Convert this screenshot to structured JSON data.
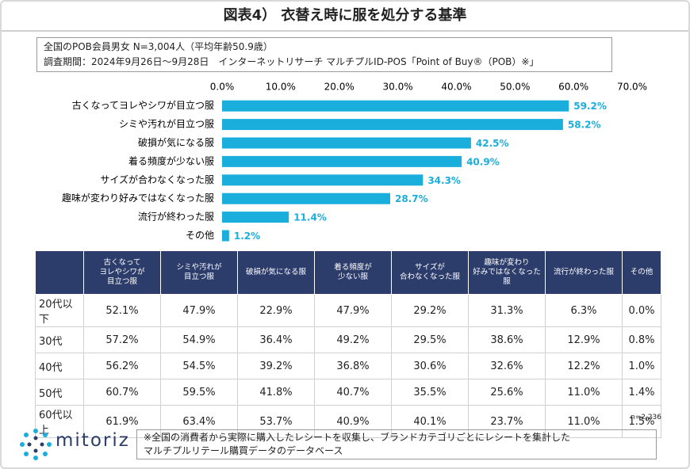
{
  "title": "図表4） 衣替え時に服を処分する基準",
  "notes": [
    "全国のPOB会員男女 N=3,004人（平均年齢50.9歳）",
    "調査期間：2024年9月26日～9月28日　インターネットリサーチ マルチプルID-POS「Point of Buy®（POB）※」"
  ],
  "chart_data": {
    "type": "bar",
    "orientation": "horizontal",
    "categories": [
      "古くなってヨレやシワが目立つ服",
      "シミや汚れが目立つ服",
      "破損が気になる服",
      "着る頻度が少ない服",
      "サイズが合わなくなった服",
      "趣味が変わり好みではなくなった服",
      "流行が終わった服",
      "その他"
    ],
    "values": [
      59.2,
      58.2,
      42.5,
      40.9,
      34.3,
      28.7,
      11.4,
      1.2
    ],
    "value_labels": [
      "59.2%",
      "58.2%",
      "42.5%",
      "40.9%",
      "34.3%",
      "28.7%",
      "11.4%",
      "1.2%"
    ],
    "color": "#1aaedc",
    "xlim": [
      0,
      70
    ],
    "xticks": [
      {
        "value": 0,
        "label": "0.0%"
      },
      {
        "value": 10,
        "label": "10.0%"
      },
      {
        "value": 20,
        "label": "20.0%"
      },
      {
        "value": 30,
        "label": "30.0%"
      },
      {
        "value": 40,
        "label": "40.0%"
      },
      {
        "value": 50,
        "label": "50.0%"
      },
      {
        "value": 60,
        "label": "60.0%"
      },
      {
        "value": 70,
        "label": "70.0%"
      }
    ]
  },
  "table": {
    "columns": [
      "古くなって\nヨレやシワが\n目立つ服",
      "シミや汚れが\n目立つ服",
      "破損が気になる服",
      "着る頻度が\n少ない服",
      "サイズが\n合わなくなった服",
      "趣味が変わり\n好みではなくなった\n服",
      "流行が終わった服",
      "その他"
    ],
    "rows": [
      [
        "20代以下",
        "52.1%",
        "47.9%",
        "22.9%",
        "47.9%",
        "29.2%",
        "31.3%",
        "6.3%",
        "0.0%"
      ],
      [
        "30代",
        "57.2%",
        "54.9%",
        "36.4%",
        "49.2%",
        "29.5%",
        "38.6%",
        "12.9%",
        "0.8%"
      ],
      [
        "40代",
        "56.2%",
        "54.5%",
        "39.2%",
        "36.8%",
        "30.6%",
        "32.6%",
        "12.2%",
        "1.0%"
      ],
      [
        "50代",
        "60.7%",
        "59.5%",
        "41.8%",
        "40.7%",
        "35.5%",
        "25.6%",
        "11.0%",
        "1.4%"
      ],
      [
        "60代以上",
        "61.9%",
        "63.4%",
        "53.7%",
        "40.9%",
        "40.1%",
        "23.7%",
        "11.0%",
        "1.5%"
      ]
    ]
  },
  "sample_note": "n=2,236",
  "logo": "mitoriz",
  "footnote": [
    "※全国の消費者から実際に購入したレシートを収集し、ブランドカテゴリごとにレシートを集計した",
    "マルチプルリテール購買データのデータベース"
  ]
}
